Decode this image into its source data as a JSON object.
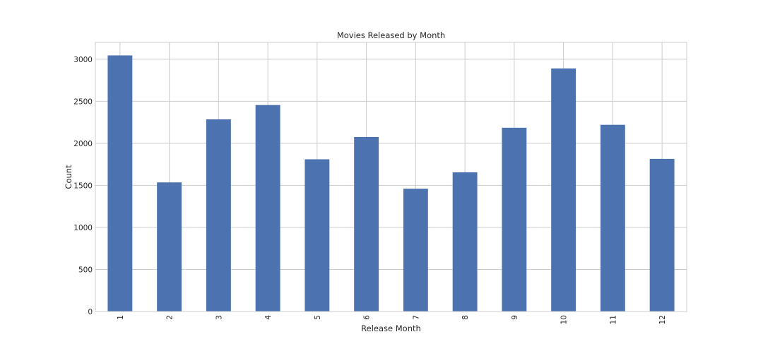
{
  "chart_data": {
    "type": "bar",
    "title": "Movies Released by Month",
    "xlabel": "Release Month",
    "ylabel": "Count",
    "categories": [
      "1",
      "2",
      "3",
      "4",
      "5",
      "6",
      "7",
      "8",
      "9",
      "10",
      "11",
      "12"
    ],
    "values": [
      3045,
      1535,
      2285,
      2455,
      1810,
      2075,
      1460,
      1655,
      2185,
      2890,
      2220,
      1815
    ],
    "yticks": [
      0,
      500,
      1000,
      1500,
      2000,
      2500,
      3000
    ],
    "ylim": [
      0,
      3200
    ],
    "grid": true,
    "bar_color": "#4c72b0",
    "grid_color": "#cccccc",
    "axes_edge_color": "#cccccc"
  }
}
